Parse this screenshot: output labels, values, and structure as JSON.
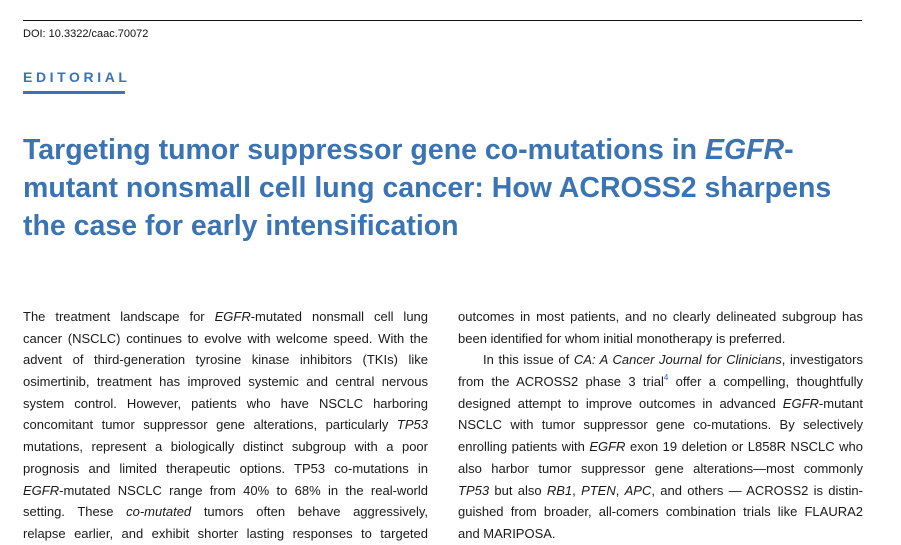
{
  "header": {
    "doi": "DOI: 10.3322/caac.70072",
    "section": "EDITORIAL"
  },
  "colors": {
    "accent": "#3a74b5",
    "reference_link": "#3355dd"
  },
  "title": {
    "lines": [
      [
        {
          "t": "Targeting tumor suppressor gene co-mutations in "
        },
        {
          "t": "EGFR",
          "i": true
        },
        {
          "t": "-"
        }
      ],
      [
        {
          "t": "mutant nonsmall cell lung cancer: How ACROSS2 sharpens"
        }
      ],
      [
        {
          "t": "the case for early intensification"
        }
      ]
    ]
  },
  "columns": [
    {
      "lines": [
        {
          "s": [
            {
              "t": "The treatment landscape for "
            },
            {
              "t": "EGFR",
              "i": true
            },
            {
              "t": "-mutated nonsmall cell lung"
            }
          ]
        },
        {
          "s": [
            {
              "t": "cancer (NSCLC) continues to evolve with welcome speed. With the"
            }
          ]
        },
        {
          "s": [
            {
              "t": "advent of third-generation tyrosine kinase inhibitors (TKIs) like"
            }
          ]
        },
        {
          "s": [
            {
              "t": "osimertinib, treatment has improved systemic and central nervous"
            }
          ]
        },
        {
          "s": [
            {
              "t": "system control. However, patients who have NSCLC harboring"
            }
          ]
        },
        {
          "s": [
            {
              "t": "concomitant tumor suppressor gene alterations, particularly "
            },
            {
              "t": "TP53",
              "i": true
            }
          ]
        },
        {
          "s": [
            {
              "t": "mutations, represent a biologically distinct subgroup with a poor"
            }
          ]
        },
        {
          "s": [
            {
              "t": "prognosis and limited therapeutic options. TP53 co-mutations in"
            }
          ]
        },
        {
          "s": [
            {
              "t": "EGFR",
              "i": true
            },
            {
              "t": "-mutated NSCLC range from 40% to 68% in the real-world"
            }
          ]
        },
        {
          "s": [
            {
              "t": "setting. These "
            },
            {
              "t": "co-mutated",
              "i": true
            },
            {
              "t": " tumors often behave aggressively,"
            }
          ]
        },
        {
          "s": [
            {
              "t": "relapse earlier, and exhibit shorter lasting responses to targeted"
            }
          ]
        }
      ]
    },
    {
      "lines": [
        {
          "s": [
            {
              "t": "outcomes in most patients, and no clearly delineated subgroup has"
            }
          ]
        },
        {
          "s": [
            {
              "t": "been identified for whom initial monotherapy is preferred."
            }
          ],
          "last": true
        },
        {
          "s": [
            {
              "t": "In this issue of "
            },
            {
              "t": "CA: A Cancer Journal for Clinicians",
              "i": true
            },
            {
              "t": ", investigators"
            }
          ],
          "indent": true
        },
        {
          "s": [
            {
              "t": "from the ACROSS2 phase 3 trial"
            },
            {
              "t": "4",
              "sup": true
            },
            {
              "t": " offer a compelling, thoughtfully"
            }
          ]
        },
        {
          "s": [
            {
              "t": "designed attempt to improve outcomes in advanced "
            },
            {
              "t": "EGFR",
              "i": true
            },
            {
              "t": "-mutant"
            }
          ]
        },
        {
          "s": [
            {
              "t": "NSCLC with tumor suppressor gene co-mutations. By selectively"
            }
          ]
        },
        {
          "s": [
            {
              "t": "enrolling patients with "
            },
            {
              "t": "EGFR",
              "i": true
            },
            {
              "t": " exon 19 deletion or L858R NSCLC who"
            }
          ]
        },
        {
          "s": [
            {
              "t": "also harbor tumor suppressor gene alterations—most commonly"
            }
          ]
        },
        {
          "s": [
            {
              "t": "TP53",
              "i": true
            },
            {
              "t": " but also "
            },
            {
              "t": "RB1",
              "i": true
            },
            {
              "t": ", "
            },
            {
              "t": "PTEN",
              "i": true
            },
            {
              "t": ", "
            },
            {
              "t": "APC",
              "i": true
            },
            {
              "t": ", and others — ACROSS2 is distin-"
            }
          ]
        },
        {
          "s": [
            {
              "t": "guished from broader, all-comers combination trials like FLAURA2"
            }
          ]
        },
        {
          "s": [
            {
              "t": "and MARIPOSA."
            }
          ],
          "last": true
        }
      ]
    }
  ]
}
